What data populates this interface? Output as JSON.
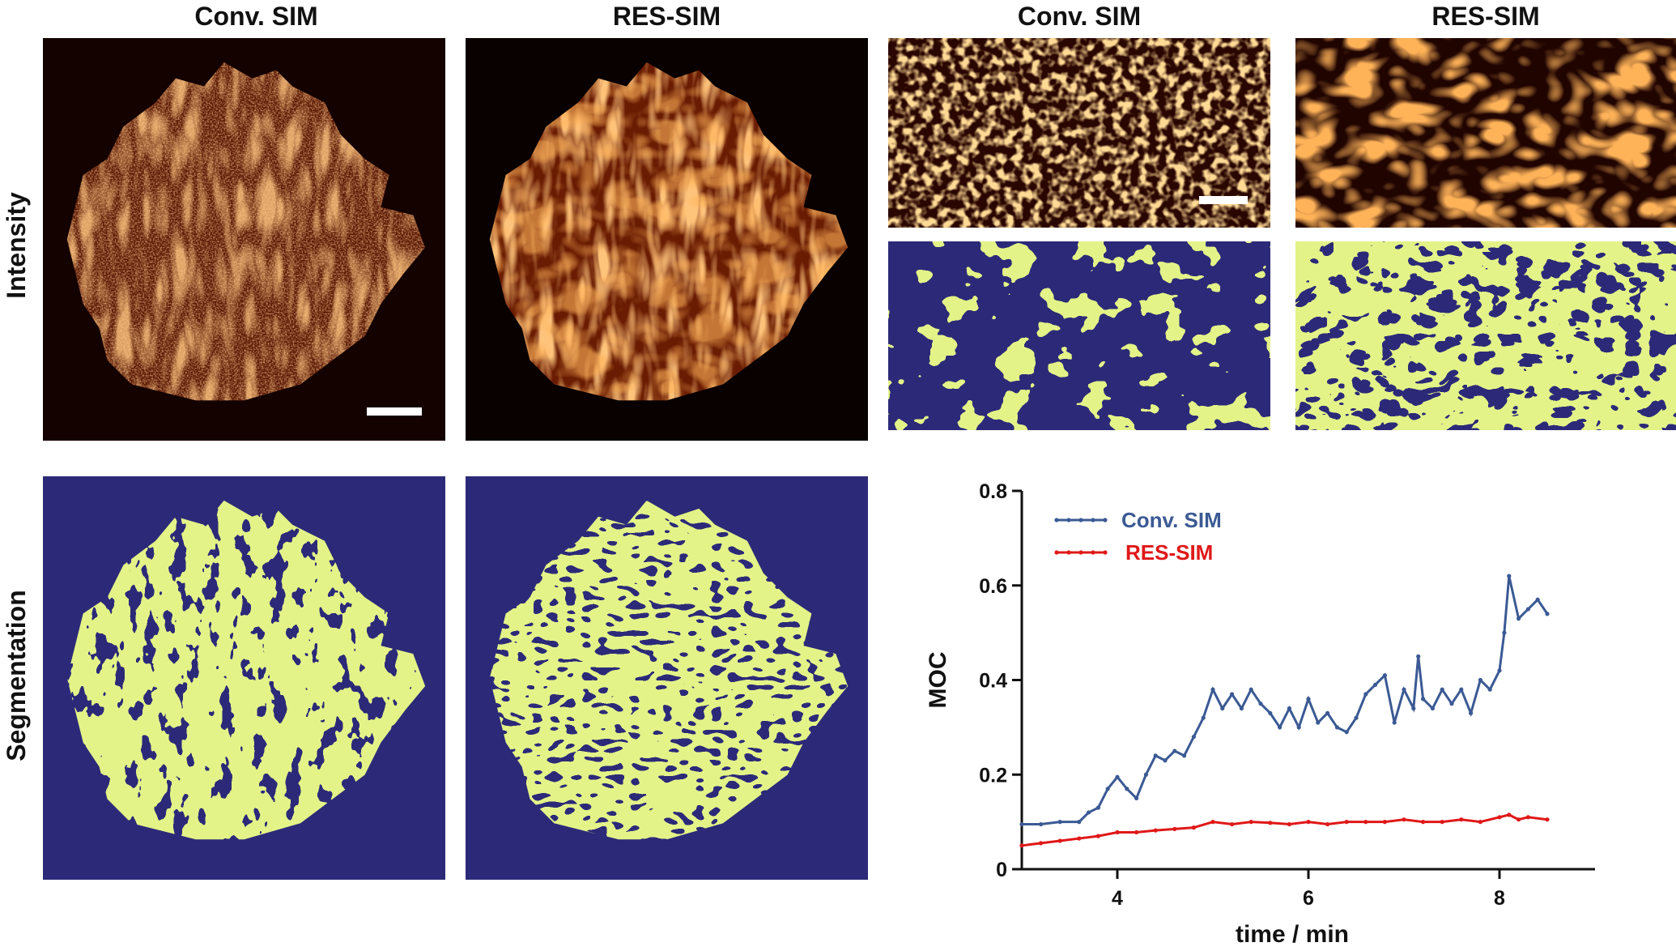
{
  "column_headers": [
    "Conv. SIM",
    "RES-SIM",
    "Conv. SIM",
    "RES-SIM"
  ],
  "row_labels": {
    "top": "Intensity",
    "bottom": "Segmentation"
  },
  "colors": {
    "segmentation_background": "#2c2a78",
    "segmentation_foreground": "#c3e43f",
    "intensity_dark": "#140200",
    "intensity_bright": "#ffb060",
    "conv_sim_series": "#3b5a94",
    "res_sim_series": "#e01818"
  },
  "chart_data": {
    "type": "line",
    "title": "",
    "xlabel": "time / min",
    "ylabel": "MOC",
    "xlim": [
      3,
      9
    ],
    "ylim": [
      0,
      0.8
    ],
    "xticks": [
      4,
      6,
      8
    ],
    "yticks": [
      0,
      0.2,
      0.4,
      0.6,
      0.8
    ],
    "ytick_labels": [
      "0",
      "0.2",
      "0.4",
      "0.6",
      "0.8"
    ],
    "grid": false,
    "legend_position": "top-left",
    "series": [
      {
        "name": "Conv. SIM",
        "color": "#3b5a94",
        "x": [
          3.0,
          3.2,
          3.4,
          3.6,
          3.7,
          3.8,
          3.9,
          4.0,
          4.1,
          4.2,
          4.3,
          4.4,
          4.5,
          4.6,
          4.7,
          4.8,
          4.9,
          5.0,
          5.1,
          5.2,
          5.3,
          5.4,
          5.5,
          5.6,
          5.7,
          5.8,
          5.9,
          6.0,
          6.1,
          6.2,
          6.3,
          6.4,
          6.5,
          6.6,
          6.7,
          6.8,
          6.9,
          7.0,
          7.1,
          7.15,
          7.2,
          7.3,
          7.4,
          7.5,
          7.6,
          7.7,
          7.8,
          7.9,
          8.0,
          8.05,
          8.1,
          8.2,
          8.3,
          8.4,
          8.5
        ],
        "y": [
          0.095,
          0.095,
          0.1,
          0.1,
          0.12,
          0.13,
          0.17,
          0.195,
          0.17,
          0.15,
          0.2,
          0.24,
          0.23,
          0.25,
          0.24,
          0.28,
          0.32,
          0.38,
          0.34,
          0.37,
          0.34,
          0.38,
          0.35,
          0.33,
          0.3,
          0.34,
          0.3,
          0.36,
          0.31,
          0.33,
          0.3,
          0.29,
          0.32,
          0.37,
          0.39,
          0.41,
          0.31,
          0.38,
          0.34,
          0.45,
          0.36,
          0.34,
          0.38,
          0.35,
          0.38,
          0.33,
          0.4,
          0.38,
          0.42,
          0.5,
          0.62,
          0.53,
          0.55,
          0.57,
          0.54
        ]
      },
      {
        "name": "RES-SIM",
        "color": "#e01818",
        "x": [
          3.0,
          3.2,
          3.4,
          3.6,
          3.8,
          4.0,
          4.2,
          4.4,
          4.6,
          4.8,
          5.0,
          5.2,
          5.4,
          5.6,
          5.8,
          6.0,
          6.2,
          6.4,
          6.6,
          6.8,
          7.0,
          7.2,
          7.4,
          7.6,
          7.8,
          8.0,
          8.1,
          8.2,
          8.3,
          8.5
        ],
        "y": [
          0.05,
          0.055,
          0.06,
          0.065,
          0.07,
          0.078,
          0.078,
          0.082,
          0.085,
          0.088,
          0.1,
          0.095,
          0.1,
          0.098,
          0.095,
          0.1,
          0.095,
          0.1,
          0.1,
          0.1,
          0.105,
          0.1,
          0.1,
          0.105,
          0.1,
          0.11,
          0.115,
          0.105,
          0.11,
          0.105
        ]
      }
    ]
  }
}
